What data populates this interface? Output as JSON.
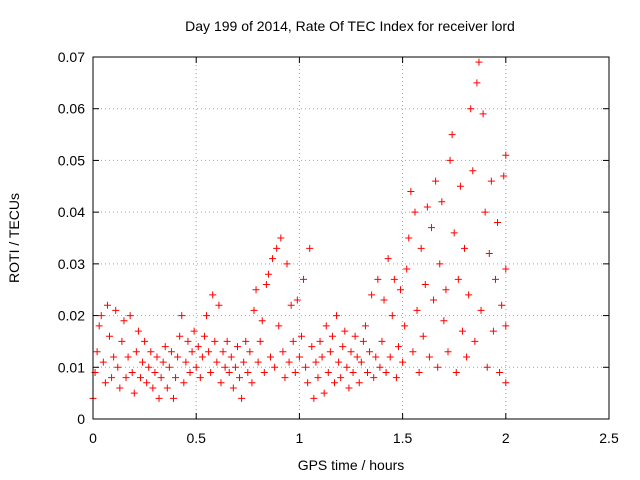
{
  "chart_data": {
    "type": "scatter",
    "title": "Day 199 of 2014, Rate Of TEC Index for receiver lord",
    "xlabel": "GPS time / hours",
    "ylabel": "ROTI / TECUs",
    "xlim": [
      0,
      2.5
    ],
    "ylim": [
      0,
      0.07
    ],
    "x_ticks": [
      "0",
      "0.5",
      "1",
      "1.5",
      "2",
      "2.5"
    ],
    "y_ticks": [
      "0",
      "0.01",
      "0.02",
      "0.03",
      "0.04",
      "0.05",
      "0.06",
      "0.07"
    ],
    "grid": true,
    "marker": "plus",
    "color": "#ff0000",
    "series": [
      {
        "points": [
          [
            0.0,
            0.004
          ],
          [
            0.01,
            0.009
          ],
          [
            0.02,
            0.013
          ],
          [
            0.03,
            0.018
          ],
          [
            0.04,
            0.02
          ],
          [
            0.05,
            0.011
          ],
          [
            0.06,
            0.007
          ],
          [
            0.07,
            0.022
          ],
          [
            0.08,
            0.016
          ],
          [
            0.09,
            0.008
          ],
          [
            0.1,
            0.012
          ],
          [
            0.11,
            0.021
          ],
          [
            0.12,
            0.01
          ],
          [
            0.13,
            0.006
          ],
          [
            0.14,
            0.015
          ],
          [
            0.15,
            0.019
          ],
          [
            0.16,
            0.008
          ],
          [
            0.17,
            0.012
          ],
          [
            0.18,
            0.02
          ],
          [
            0.19,
            0.009
          ],
          [
            0.2,
            0.005
          ],
          [
            0.21,
            0.013
          ],
          [
            0.22,
            0.017
          ],
          [
            0.23,
            0.008
          ],
          [
            0.24,
            0.011
          ],
          [
            0.25,
            0.015
          ],
          [
            0.26,
            0.007
          ],
          [
            0.27,
            0.01
          ],
          [
            0.28,
            0.013
          ],
          [
            0.29,
            0.006
          ],
          [
            0.3,
            0.009
          ],
          [
            0.31,
            0.012
          ],
          [
            0.32,
            0.004
          ],
          [
            0.33,
            0.008
          ],
          [
            0.34,
            0.011
          ],
          [
            0.35,
            0.014
          ],
          [
            0.36,
            0.006
          ],
          [
            0.37,
            0.01
          ],
          [
            0.38,
            0.013
          ],
          [
            0.39,
            0.004
          ],
          [
            0.4,
            0.008
          ],
          [
            0.41,
            0.012
          ],
          [
            0.42,
            0.016
          ],
          [
            0.43,
            0.02
          ],
          [
            0.44,
            0.007
          ],
          [
            0.45,
            0.011
          ],
          [
            0.46,
            0.015
          ],
          [
            0.47,
            0.009
          ],
          [
            0.48,
            0.013
          ],
          [
            0.49,
            0.017
          ],
          [
            0.5,
            0.01
          ],
          [
            0.51,
            0.014
          ],
          [
            0.52,
            0.008
          ],
          [
            0.53,
            0.012
          ],
          [
            0.54,
            0.016
          ],
          [
            0.55,
            0.02
          ],
          [
            0.56,
            0.013
          ],
          [
            0.57,
            0.009
          ],
          [
            0.58,
            0.024
          ],
          [
            0.59,
            0.015
          ],
          [
            0.6,
            0.011
          ],
          [
            0.61,
            0.022
          ],
          [
            0.62,
            0.007
          ],
          [
            0.63,
            0.013
          ],
          [
            0.64,
            0.01
          ],
          [
            0.65,
            0.015
          ],
          [
            0.66,
            0.009
          ],
          [
            0.67,
            0.012
          ],
          [
            0.68,
            0.006
          ],
          [
            0.69,
            0.01
          ],
          [
            0.7,
            0.014
          ],
          [
            0.71,
            0.008
          ],
          [
            0.72,
            0.004
          ],
          [
            0.73,
            0.011
          ],
          [
            0.74,
            0.015
          ],
          [
            0.75,
            0.009
          ],
          [
            0.76,
            0.013
          ],
          [
            0.77,
            0.007
          ],
          [
            0.78,
            0.021
          ],
          [
            0.79,
            0.025
          ],
          [
            0.8,
            0.011
          ],
          [
            0.81,
            0.015
          ],
          [
            0.82,
            0.019
          ],
          [
            0.83,
            0.009
          ],
          [
            0.84,
            0.026
          ],
          [
            0.85,
            0.028
          ],
          [
            0.86,
            0.012
          ],
          [
            0.87,
            0.031
          ],
          [
            0.88,
            0.01
          ],
          [
            0.89,
            0.033
          ],
          [
            0.9,
            0.018
          ],
          [
            0.91,
            0.035
          ],
          [
            0.92,
            0.013
          ],
          [
            0.93,
            0.008
          ],
          [
            0.94,
            0.03
          ],
          [
            0.95,
            0.011
          ],
          [
            0.96,
            0.022
          ],
          [
            0.97,
            0.015
          ],
          [
            0.98,
            0.009
          ],
          [
            0.99,
            0.023
          ],
          [
            1.0,
            0.012
          ],
          [
            1.01,
            0.016
          ],
          [
            1.02,
            0.027
          ],
          [
            1.03,
            0.01
          ],
          [
            1.04,
            0.007
          ],
          [
            1.05,
            0.033
          ],
          [
            1.06,
            0.014
          ],
          [
            1.07,
            0.004
          ],
          [
            1.08,
            0.011
          ],
          [
            1.09,
            0.008
          ],
          [
            1.1,
            0.015
          ],
          [
            1.11,
            0.012
          ],
          [
            1.12,
            0.005
          ],
          [
            1.13,
            0.018
          ],
          [
            1.14,
            0.009
          ],
          [
            1.15,
            0.013
          ],
          [
            1.16,
            0.016
          ],
          [
            1.17,
            0.007
          ],
          [
            1.18,
            0.02
          ],
          [
            1.19,
            0.011
          ],
          [
            1.2,
            0.008
          ],
          [
            1.21,
            0.014
          ],
          [
            1.22,
            0.017
          ],
          [
            1.23,
            0.01
          ],
          [
            1.24,
            0.006
          ],
          [
            1.25,
            0.013
          ],
          [
            1.26,
            0.009
          ],
          [
            1.27,
            0.016
          ],
          [
            1.28,
            0.012
          ],
          [
            1.29,
            0.007
          ],
          [
            1.3,
            0.011
          ],
          [
            1.31,
            0.015
          ],
          [
            1.32,
            0.018
          ],
          [
            1.33,
            0.009
          ],
          [
            1.34,
            0.013
          ],
          [
            1.35,
            0.024
          ],
          [
            1.36,
            0.008
          ],
          [
            1.37,
            0.012
          ],
          [
            1.38,
            0.027
          ],
          [
            1.39,
            0.01
          ],
          [
            1.4,
            0.015
          ],
          [
            1.41,
            0.023
          ],
          [
            1.42,
            0.009
          ],
          [
            1.43,
            0.031
          ],
          [
            1.44,
            0.012
          ],
          [
            1.45,
            0.02
          ],
          [
            1.46,
            0.027
          ],
          [
            1.47,
            0.008
          ],
          [
            1.48,
            0.014
          ],
          [
            1.49,
            0.025
          ],
          [
            1.5,
            0.011
          ],
          [
            1.51,
            0.018
          ],
          [
            1.52,
            0.029
          ],
          [
            1.53,
            0.035
          ],
          [
            1.54,
            0.044
          ],
          [
            1.55,
            0.013
          ],
          [
            1.56,
            0.04
          ],
          [
            1.57,
            0.021
          ],
          [
            1.58,
            0.009
          ],
          [
            1.59,
            0.033
          ],
          [
            1.6,
            0.016
          ],
          [
            1.61,
            0.026
          ],
          [
            1.62,
            0.041
          ],
          [
            1.63,
            0.012
          ],
          [
            1.64,
            0.037
          ],
          [
            1.65,
            0.023
          ],
          [
            1.66,
            0.046
          ],
          [
            1.67,
            0.01
          ],
          [
            1.68,
            0.03
          ],
          [
            1.69,
            0.042
          ],
          [
            1.7,
            0.019
          ],
          [
            1.71,
            0.025
          ],
          [
            1.72,
            0.013
          ],
          [
            1.73,
            0.05
          ],
          [
            1.74,
            0.055
          ],
          [
            1.75,
            0.036
          ],
          [
            1.76,
            0.009
          ],
          [
            1.77,
            0.027
          ],
          [
            1.78,
            0.045
          ],
          [
            1.79,
            0.017
          ],
          [
            1.8,
            0.033
          ],
          [
            1.81,
            0.012
          ],
          [
            1.82,
            0.024
          ],
          [
            1.83,
            0.06
          ],
          [
            1.84,
            0.048
          ],
          [
            1.85,
            0.015
          ],
          [
            1.86,
            0.065
          ],
          [
            1.87,
            0.069
          ],
          [
            1.88,
            0.021
          ],
          [
            1.89,
            0.059
          ],
          [
            1.9,
            0.04
          ],
          [
            1.91,
            0.01
          ],
          [
            1.92,
            0.032
          ],
          [
            1.93,
            0.046
          ],
          [
            1.94,
            0.017
          ],
          [
            1.95,
            0.027
          ],
          [
            1.96,
            0.038
          ],
          [
            1.97,
            0.009
          ],
          [
            1.98,
            0.022
          ],
          [
            1.99,
            0.047
          ],
          [
            2.0,
            0.051
          ],
          [
            2.0,
            0.007
          ],
          [
            2.0,
            0.018
          ],
          [
            2.0,
            0.029
          ]
        ]
      }
    ]
  }
}
